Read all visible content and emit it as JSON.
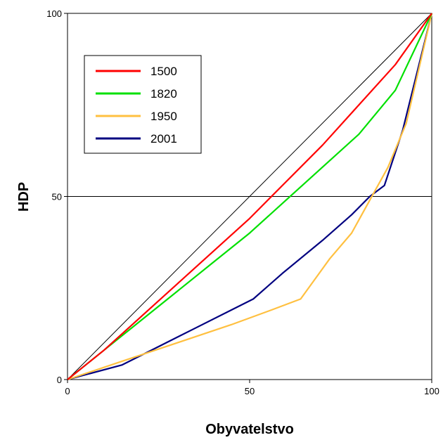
{
  "chart_data": {
    "type": "line",
    "title": "",
    "xlabel": "Obyvatelstvo",
    "ylabel": "HDP",
    "xlim": [
      0,
      100
    ],
    "ylim": [
      0,
      100
    ],
    "x_ticks": [
      "0",
      "50",
      "100"
    ],
    "y_ticks": [
      "0",
      "50",
      "100"
    ],
    "grid": "horizontal line at y=50",
    "legend_position": "top-left",
    "equality_line": {
      "x": [
        0,
        100
      ],
      "y": [
        0,
        100
      ],
      "color": "#000000"
    },
    "series": [
      {
        "name": "1500",
        "color": "#ff0000",
        "x": [
          0,
          10,
          20,
          30,
          40,
          50,
          60,
          70,
          80,
          90,
          100
        ],
        "y": [
          0,
          8,
          17,
          26,
          35,
          44,
          54,
          64,
          75,
          86,
          100
        ]
      },
      {
        "name": "1820",
        "color": "#00e000",
        "x": [
          0,
          10,
          20,
          30,
          40,
          50,
          60,
          70,
          80,
          90,
          100
        ],
        "y": [
          0,
          8,
          16,
          24,
          32,
          40,
          49,
          58,
          67,
          79,
          100
        ]
      },
      {
        "name": "1950",
        "color": "#ffc040",
        "x": [
          0,
          15,
          30,
          45,
          56,
          64,
          72,
          78,
          83,
          88,
          93,
          100
        ],
        "y": [
          0,
          5,
          10,
          15,
          19,
          22,
          33,
          40,
          49,
          58,
          70,
          100
        ]
      },
      {
        "name": "2001",
        "color": "#000080",
        "x": [
          0,
          15,
          25,
          35,
          45,
          51,
          59,
          70,
          78,
          83,
          87,
          92,
          100
        ],
        "y": [
          0,
          4,
          9,
          14,
          19,
          22,
          29,
          38,
          45,
          50,
          53,
          68,
          100
        ]
      }
    ]
  }
}
